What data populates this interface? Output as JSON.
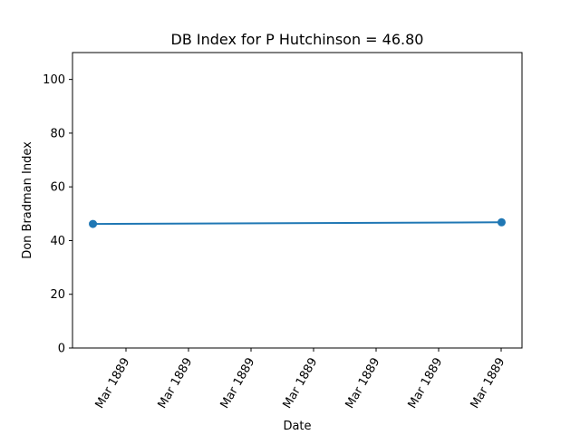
{
  "chart_data": {
    "type": "line",
    "title": "DB Index for P Hutchinson = 46.80",
    "xlabel": "Date",
    "ylabel": "Don Bradman Index",
    "ylim": [
      0,
      110
    ],
    "yticks": [
      0,
      20,
      40,
      60,
      80,
      100
    ],
    "xticks": [
      "Mar 1889",
      "Mar 1889",
      "Mar 1889",
      "Mar 1889",
      "Mar 1889",
      "Mar 1889",
      "Mar 1889"
    ],
    "grid": false,
    "legend": "none",
    "series": [
      {
        "color": "#1f77b4",
        "marker": "circle",
        "points": [
          {
            "x": "1889-03-12",
            "y": 46.2
          },
          {
            "x": "1889-03-25",
            "y": 46.8
          }
        ]
      }
    ]
  }
}
